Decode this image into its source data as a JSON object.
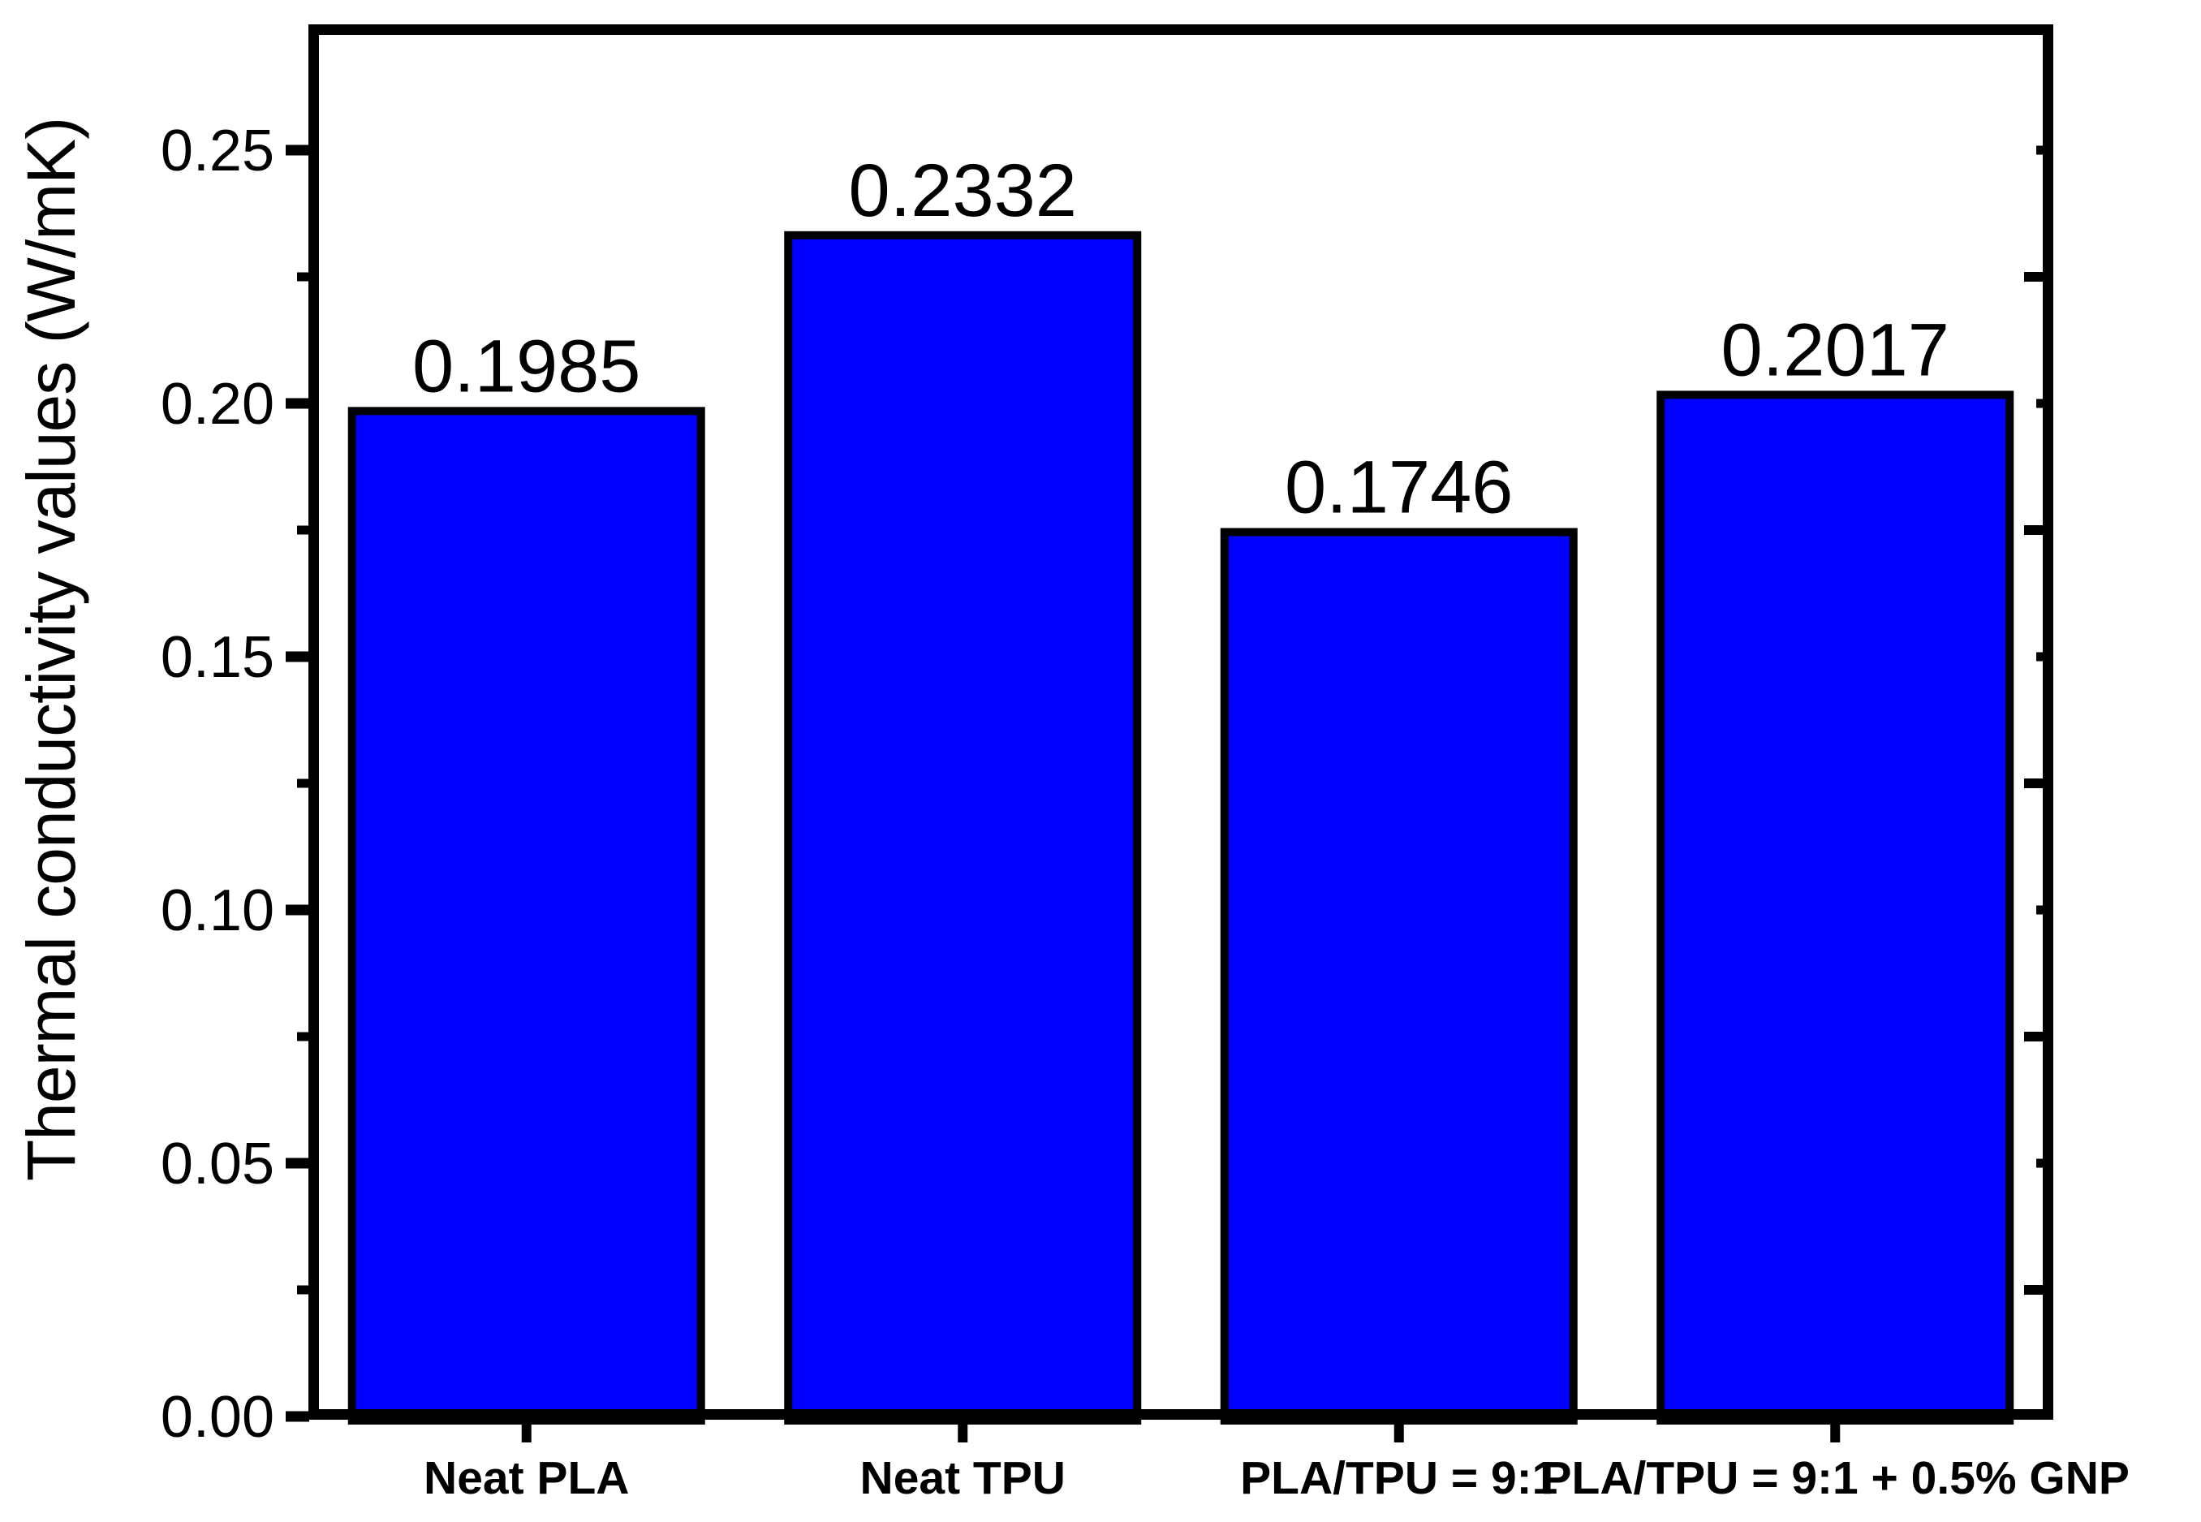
{
  "chart_data": {
    "type": "bar",
    "title": "",
    "ylabel": "Thermal conductivity values (W/mK)",
    "xlabel": "",
    "categories": [
      "Neat PLA",
      "Neat TPU",
      "PLA/TPU = 9:1",
      "PLA/TPU = 9:1 + 0.5% GNP"
    ],
    "values": [
      0.1985,
      0.2332,
      0.1746,
      0.2017
    ],
    "value_labels": [
      "0.1985",
      "0.2332",
      "0.1746",
      "0.2017"
    ],
    "ylim": [
      0,
      0.275
    ],
    "y_major_ticks": [
      0.0,
      0.05,
      0.1,
      0.15,
      0.2,
      0.25
    ],
    "y_major_tick_labels": [
      "0.00",
      "0.05",
      "0.10",
      "0.15",
      "0.20",
      "0.25"
    ],
    "y_minor_ticks": [
      0.025,
      0.075,
      0.125,
      0.175,
      0.225
    ],
    "grid": "off",
    "legend": "none",
    "bar_fill_color": "#0000FF",
    "bar_border_color": "#000000",
    "axis_color": "#000000",
    "background_color": "#FFFFFF"
  }
}
